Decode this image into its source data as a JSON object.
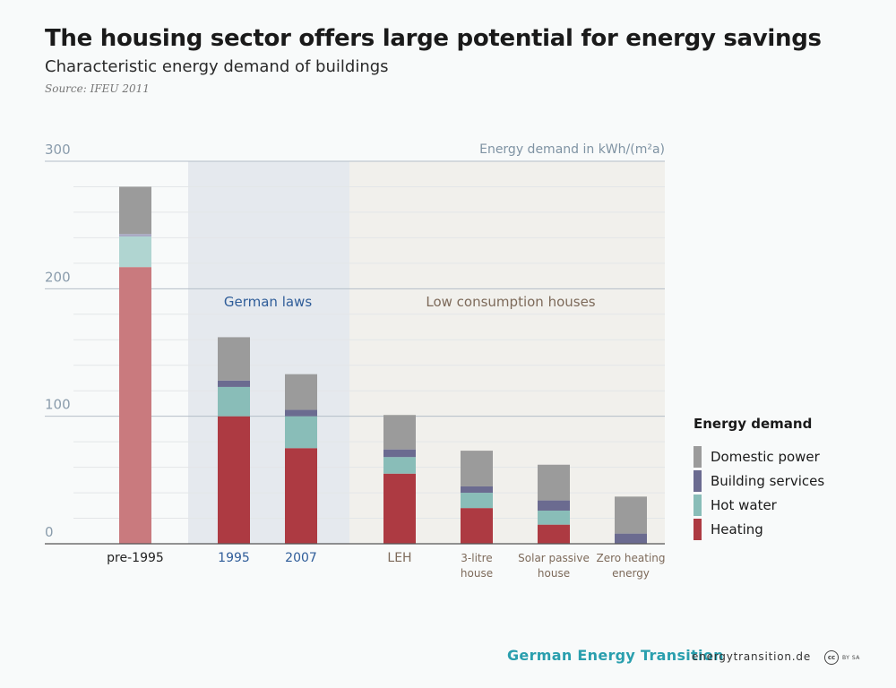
{
  "title": "The housing sector offers large potential for energy savings",
  "subtitle": "Characteristic energy demand of buildings",
  "source": "Source: IFEU 2011",
  "legend": {
    "title": "Energy demand",
    "items": [
      {
        "label": "Domestic power",
        "color": "#9b9b9b"
      },
      {
        "label": "Building services",
        "color": "#6b6b90"
      },
      {
        "label": "Hot water",
        "color": "#89bdb8"
      },
      {
        "label": "Heating",
        "color": "#ad3a42"
      }
    ]
  },
  "footer": {
    "brand": "German Energy Transition",
    "url": "energytransition.de",
    "license_badge": "cc",
    "license_text": "BY SA"
  },
  "chart_data": {
    "type": "bar",
    "stacked": true,
    "ylabel": "Energy demand in kWh/(m²a)",
    "ylim": [
      0,
      300
    ],
    "yticks": [
      0,
      100,
      200,
      300
    ],
    "regions": [
      {
        "label": "German laws",
        "color": "#e5e9ee",
        "text_color": "#2f5d99",
        "categories": [
          "1995",
          "2007"
        ]
      },
      {
        "label": "Low consumption houses",
        "color": "#f1f0ec",
        "text_color": "#7d6a5a",
        "categories": [
          "LEH",
          "3-litre house",
          "Solar passive house",
          "Zero heating energy"
        ]
      }
    ],
    "categories": [
      {
        "lines": [
          "pre-1995"
        ],
        "color": "#222222",
        "muted": true
      },
      {
        "lines": [
          "1995"
        ],
        "color": "#2f5d99",
        "muted": false
      },
      {
        "lines": [
          "2007"
        ],
        "color": "#2f5d99",
        "muted": false
      },
      {
        "lines": [
          "LEH"
        ],
        "color": "#7d6a5a",
        "muted": false
      },
      {
        "lines": [
          "3-litre",
          "house"
        ],
        "color": "#7d6a5a",
        "muted": false
      },
      {
        "lines": [
          "Solar passive",
          "house"
        ],
        "color": "#7d6a5a",
        "muted": false
      },
      {
        "lines": [
          "Zero heating",
          "energy"
        ],
        "color": "#7d6a5a",
        "muted": false
      }
    ],
    "series": [
      {
        "name": "Heating",
        "color": "#ad3a42",
        "muted_color": "#c97a7e",
        "values": [
          217,
          100,
          75,
          55,
          28,
          15,
          0
        ]
      },
      {
        "name": "Hot water",
        "color": "#89bdb8",
        "muted_color": "#b0d5d1",
        "values": [
          24,
          23,
          25,
          13,
          12,
          11,
          0
        ]
      },
      {
        "name": "Building services",
        "color": "#6b6b90",
        "muted_color": "#a9a9c3",
        "values": [
          2,
          5,
          5,
          6,
          5,
          8,
          8
        ]
      },
      {
        "name": "Domestic power",
        "color": "#9b9b9b",
        "muted_color": "#9b9b9b",
        "values": [
          37,
          34,
          28,
          27,
          28,
          28,
          29
        ]
      }
    ]
  }
}
